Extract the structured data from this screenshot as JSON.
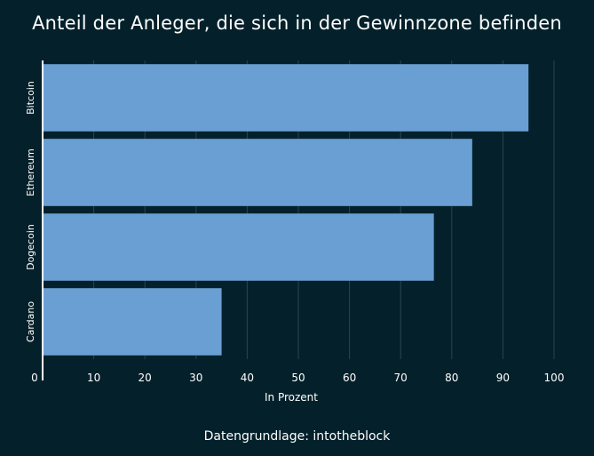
{
  "chart_data": {
    "type": "bar",
    "orientation": "horizontal",
    "title": "Anteil der Anleger, die sich in der Gewinnzone befinden",
    "xlabel": "In Prozent",
    "ylabel": "",
    "categories": [
      "Bitcoin",
      "Ethereum",
      "Dogecoin",
      "Cardano"
    ],
    "values": [
      95,
      84,
      76.5,
      35
    ],
    "xlim": [
      0,
      100
    ],
    "xticks": [
      "0",
      "10",
      "20",
      "30",
      "40",
      "50",
      "60",
      "70",
      "80",
      "90",
      "100"
    ],
    "grid": "vertical",
    "bar_color": "#6a9fd4",
    "background_color": "#04212b",
    "grid_color": "#2c434b",
    "source": "Datengrundlage: intotheblock"
  }
}
